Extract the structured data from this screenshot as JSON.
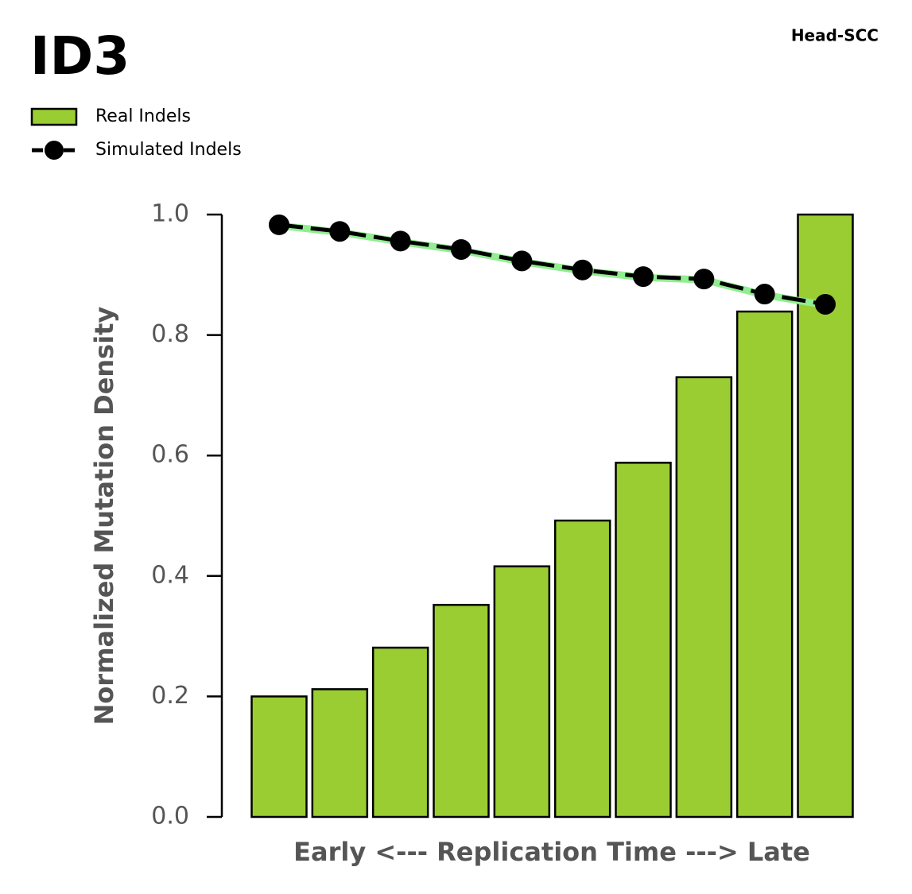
{
  "chart_data": {
    "type": "bar",
    "title": "ID3",
    "subtitle": "Head-SCC",
    "x_label": "Early <--- Replication Time ---> Late",
    "y_label": "Normalized Mutation Density",
    "categories": [
      null,
      null,
      null,
      null,
      null,
      null,
      null,
      null,
      null,
      null
    ],
    "series": [
      {
        "name": "Real Indels",
        "type": "bar",
        "color": "#9acd32",
        "values": [
          0.2,
          0.212,
          0.281,
          0.352,
          0.416,
          0.492,
          0.588,
          0.73,
          0.839,
          1.0
        ]
      },
      {
        "name": "Simulated Indels",
        "type": "line",
        "color": "#000000",
        "underlay_color": "#90ee90",
        "values": [
          0.983,
          0.972,
          0.956,
          0.942,
          0.923,
          0.908,
          0.897,
          0.893,
          0.868,
          0.851
        ]
      }
    ],
    "ylim": [
      0,
      1
    ],
    "yticks": [
      {
        "value": 0,
        "label": "0.0"
      },
      0.2,
      0.4,
      0.6,
      0.8,
      {
        "value": 1,
        "label": "1.0"
      }
    ],
    "legend": "top-left"
  }
}
